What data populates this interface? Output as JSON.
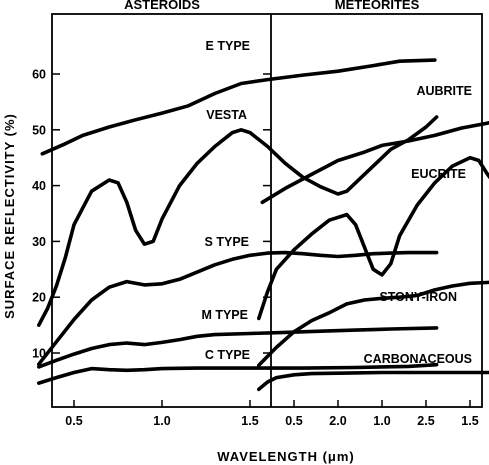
{
  "chart_data": {
    "type": "line",
    "ylabel": "SURFACE REFLECTIVITY (%)",
    "xlabel": "WAVELENGTH (μm)",
    "ylim": [
      2,
      70
    ],
    "yticks": [
      10,
      20,
      30,
      40,
      50,
      60
    ],
    "xlim": [
      0.2,
      2.7
    ],
    "xticks": [
      0.5,
      1.0,
      1.5,
      2.0,
      2.5
    ],
    "xtick_labels": [
      "0.5",
      "1.0",
      "1.5",
      "2.0",
      "2.5"
    ],
    "grid": false,
    "panels": [
      {
        "title": "ASTEROIDS",
        "series": [
          {
            "name": "E TYPE",
            "x": [
              0.32,
              0.45,
              0.55,
              0.7,
              0.85,
              1.0,
              1.15,
              1.3,
              1.45,
              1.6,
              1.8,
              2.0,
              2.2,
              2.35,
              2.55
            ],
            "y": [
              45.7,
              47.5,
              49,
              50.5,
              51.8,
              53,
              54.3,
              56.5,
              58.3,
              59,
              59.8,
              60.5,
              61.5,
              62.3,
              62.5
            ]
          },
          {
            "name": "VESTA",
            "x": [
              0.3,
              0.35,
              0.4,
              0.45,
              0.5,
              0.55,
              0.6,
              0.7,
              0.75,
              0.8,
              0.85,
              0.9,
              0.95,
              1.0,
              1.1,
              1.2,
              1.3,
              1.4,
              1.45,
              1.5,
              1.6,
              1.7,
              1.8,
              1.9,
              2.0,
              2.05,
              2.1,
              2.2,
              2.3,
              2.4,
              2.5,
              2.56
            ],
            "y": [
              15,
              18,
              22,
              27,
              33,
              36,
              39,
              41,
              40.5,
              37,
              32,
              29.5,
              30,
              34,
              40,
              44,
              47,
              49.5,
              50,
              49.5,
              47,
              44,
              41.5,
              39.8,
              38.5,
              39,
              40.5,
              43.5,
              46.5,
              48.2,
              50.5,
              52.3
            ]
          },
          {
            "name": "S TYPE",
            "x": [
              0.3,
              0.4,
              0.5,
              0.6,
              0.7,
              0.8,
              0.9,
              1.0,
              1.1,
              1.2,
              1.3,
              1.4,
              1.5,
              1.6,
              1.7,
              1.8,
              1.9,
              2.0,
              2.1,
              2.2,
              2.3,
              2.4,
              2.56
            ],
            "y": [
              8,
              12,
              16,
              19.5,
              21.8,
              22.8,
              22.2,
              22.4,
              23.2,
              24.5,
              25.8,
              26.8,
              27.5,
              27.9,
              28,
              27.8,
              27.5,
              27.3,
              27.5,
              27.8,
              27.9,
              28,
              28
            ]
          },
          {
            "name": "M TYPE",
            "x": [
              0.3,
              0.4,
              0.5,
              0.6,
              0.7,
              0.8,
              0.9,
              1.0,
              1.1,
              1.2,
              1.3,
              1.5,
              1.7,
              1.9,
              2.1,
              2.3,
              2.56
            ],
            "y": [
              7.5,
              8.7,
              9.8,
              10.8,
              11.5,
              11.8,
              11.5,
              11.9,
              12.4,
              13,
              13.3,
              13.5,
              13.7,
              13.9,
              14.1,
              14.3,
              14.5
            ]
          },
          {
            "name": "C TYPE",
            "x": [
              0.3,
              0.4,
              0.5,
              0.6,
              0.7,
              0.8,
              0.9,
              1.0,
              1.2,
              1.5,
              1.8,
              2.1,
              2.4,
              2.56
            ],
            "y": [
              4.6,
              5.6,
              6.5,
              7.2,
              7,
              6.9,
              7,
              7.2,
              7.3,
              7.3,
              7.3,
              7.4,
              7.6,
              7.9
            ]
          }
        ],
        "labels": [
          {
            "text": "E TYPE",
            "series": "E TYPE"
          },
          {
            "text": "VESTA",
            "series": "VESTA"
          },
          {
            "text": "S TYPE",
            "series": "S TYPE"
          },
          {
            "text": "M TYPE",
            "series": "M TYPE"
          },
          {
            "text": "C TYPE",
            "series": "C TYPE"
          }
        ]
      },
      {
        "title": "METEORITES",
        "series": [
          {
            "name": "AUBRITE",
            "x": [
              0.32,
              0.45,
              0.6,
              0.75,
              0.9,
              1.0,
              1.15,
              1.3,
              1.45,
              1.6,
              1.75,
              1.9,
              2.0,
              2.1,
              2.3,
              2.55
            ],
            "y": [
              37,
              39.5,
              42,
              44.5,
              46,
              47.2,
              48,
              49,
              50.3,
              51.2,
              52.5,
              53,
              53.8,
              54.1,
              54.3,
              54
            ]
          },
          {
            "name": "EUCRITE",
            "x": [
              0.3,
              0.35,
              0.4,
              0.5,
              0.6,
              0.7,
              0.8,
              0.85,
              0.9,
              0.95,
              1.0,
              1.05,
              1.1,
              1.2,
              1.3,
              1.4,
              1.5,
              1.55,
              1.6,
              1.7,
              1.8,
              1.9,
              2.0,
              2.1,
              2.2,
              2.3,
              2.4,
              2.55
            ],
            "y": [
              16.2,
              21,
              25,
              28.5,
              31.3,
              33.8,
              34.8,
              33,
              29,
              25,
              24,
              26,
              31,
              36.5,
              40.5,
              43.5,
              45,
              44.5,
              42,
              37.8,
              35.2,
              33.5,
              32.5,
              32.5,
              34,
              36,
              38.5,
              41.8
            ]
          },
          {
            "name": "STONY-IRON",
            "x": [
              0.3,
              0.4,
              0.5,
              0.6,
              0.7,
              0.8,
              0.9,
              1.0,
              1.1,
              1.2,
              1.3,
              1.4,
              1.5,
              1.7,
              1.9,
              2.1,
              2.3,
              2.55
            ],
            "y": [
              7.8,
              11,
              13.8,
              15.8,
              17.2,
              18.8,
              19.5,
              19.8,
              20,
              20.3,
              21.3,
              22,
              22.5,
              22.8,
              23.5,
              24.5,
              26.2,
              28.3
            ]
          },
          {
            "name": "CARBONACEOUS",
            "x": [
              0.3,
              0.35,
              0.4,
              0.5,
              0.6,
              0.8,
              1.0,
              1.2,
              1.4,
              1.6,
              1.8,
              2.0,
              2.2,
              2.4,
              2.55
            ],
            "y": [
              3.5,
              4.8,
              5.6,
              6.1,
              6.3,
              6.4,
              6.5,
              6.5,
              6.5,
              6.5,
              6.5,
              6.4,
              6.5,
              6.8,
              7.1
            ]
          }
        ],
        "labels": [
          {
            "text": "AUBRITE",
            "series": "AUBRITE"
          },
          {
            "text": "EUCRITE",
            "series": "EUCRITE"
          },
          {
            "text": "STONY-IRON",
            "series": "STONY-IRON"
          },
          {
            "text": "CARBONACEOUS",
            "series": "CARBONACEOUS"
          }
        ]
      }
    ]
  }
}
